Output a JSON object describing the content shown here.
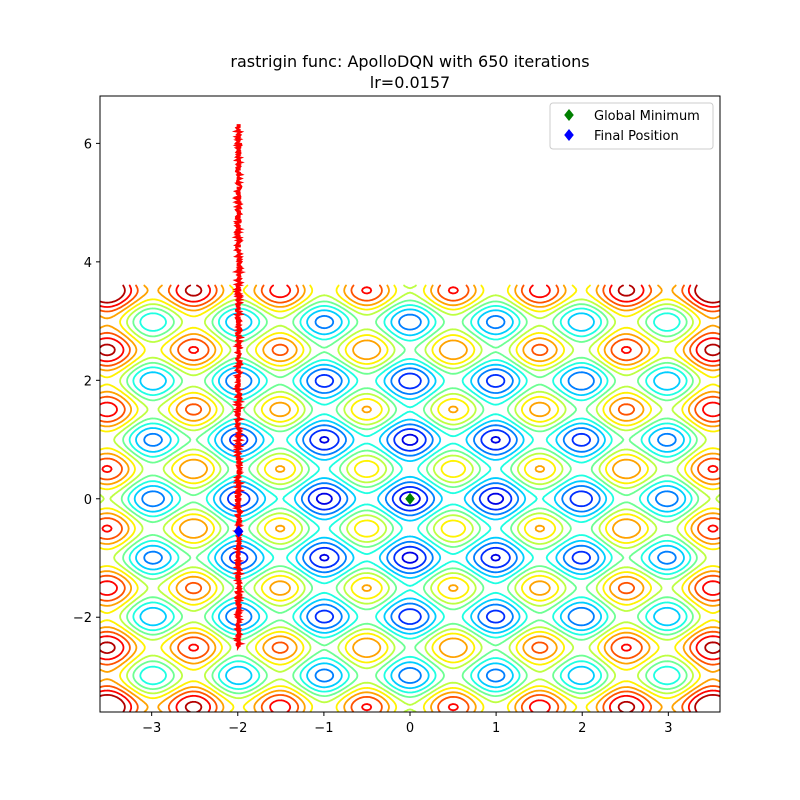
{
  "chart_data": {
    "type": "contour",
    "function": "rastrigin",
    "title_line1": "rastrigin func: ApolloDQN with 650 iterations",
    "title_line2": "lr=0.0157",
    "xlabel": "",
    "ylabel": "",
    "xlim": [
      -3.6,
      3.6
    ],
    "ylim": [
      -3.6,
      6.8
    ],
    "contour_y_range": [
      -3.6,
      3.6
    ],
    "x_ticks": [
      -3,
      -2,
      -1,
      0,
      1,
      2,
      3
    ],
    "x_tick_labels": [
      "−3",
      "−2",
      "−1",
      "0",
      "1",
      "2",
      "3"
    ],
    "y_ticks": [
      -2,
      0,
      2,
      4,
      6
    ],
    "y_tick_labels": [
      "−2",
      "0",
      "2",
      "4",
      "6"
    ],
    "contour_levels": [
      2.5,
      7,
      12,
      17,
      22,
      27,
      32,
      37,
      42,
      47,
      52,
      57
    ],
    "legend_position": "top-right",
    "legend": [
      {
        "label": "Global Minimum",
        "color": "#008000",
        "marker": "diamond"
      },
      {
        "label": "Final Position",
        "color": "#0000ff",
        "marker": "diamond"
      }
    ],
    "global_minimum": {
      "x": 0,
      "y": 0
    },
    "final_position": {
      "x": -1.99,
      "y": -0.55
    },
    "trajectory": {
      "color": "#ff0000",
      "x_center": -1.99,
      "y_start": 6.3,
      "y_end": -2.5,
      "y_min": -2.5
    }
  }
}
